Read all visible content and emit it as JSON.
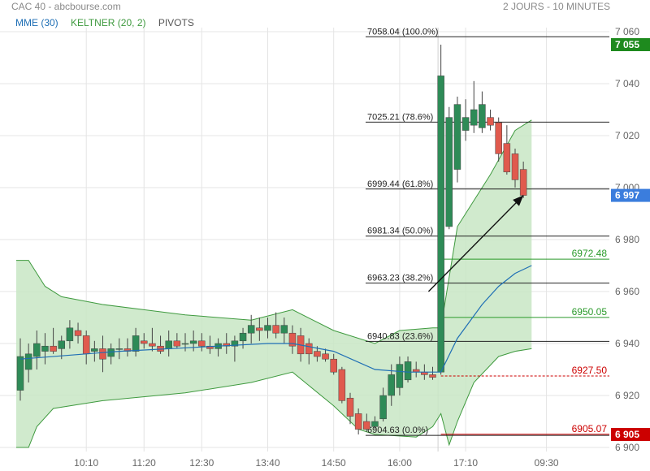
{
  "header": {
    "source": "CAC 40 - abcbourse.com",
    "period": "2 JOURS - 10 MINUTES"
  },
  "legend": [
    {
      "label": "MME (30)",
      "color": "#1f6fb5"
    },
    {
      "label": "KELTNER (20, 2)",
      "color": "#3f9a3f"
    },
    {
      "label": "PIVOTS",
      "color": "#555555"
    }
  ],
  "colors": {
    "up": "#2e8b57",
    "down": "#e05a4e",
    "ema": "#1f6fb5",
    "keltner_fill": "#c8e6c4",
    "keltner_line": "#3f9a3f",
    "pivot_green": "#2a9a2a",
    "pivot_red": "#cc0000",
    "last_price_bg": "#3b7ddd",
    "high_bg": "#1e8a1e",
    "low_bg": "#cc0000"
  },
  "chart_data": {
    "type": "candlestick",
    "x_tick_labels": [
      "10:10",
      "11:20",
      "12:30",
      "13:40",
      "14:50",
      "16:00",
      "17:10",
      "09:30"
    ],
    "y_ticks": [
      6900,
      6920,
      6940,
      6960,
      6980,
      7000,
      7020,
      7040,
      7060
    ],
    "y_tick_labels": [
      "6 900",
      "6 920",
      "6 940",
      "6 960",
      "6 980",
      "7 000",
      "7 020",
      "7 040",
      "7 060"
    ],
    "ylim": [
      6897,
      7063
    ],
    "grid": true,
    "candles": [
      {
        "o": 6922,
        "h": 6942,
        "l": 6918,
        "c": 6935
      },
      {
        "o": 6930,
        "h": 6940,
        "l": 6925,
        "c": 6936
      },
      {
        "o": 6935,
        "h": 6945,
        "l": 6930,
        "c": 6940
      },
      {
        "o": 6937,
        "h": 6944,
        "l": 6932,
        "c": 6939
      },
      {
        "o": 6939,
        "h": 6946,
        "l": 6936,
        "c": 6937
      },
      {
        "o": 6938,
        "h": 6943,
        "l": 6934,
        "c": 6941
      },
      {
        "o": 6941,
        "h": 6949,
        "l": 6938,
        "c": 6946
      },
      {
        "o": 6945,
        "h": 6948,
        "l": 6940,
        "c": 6943
      },
      {
        "o": 6943,
        "h": 6945,
        "l": 6932,
        "c": 6936
      },
      {
        "o": 6937,
        "h": 6941,
        "l": 6933,
        "c": 6938
      },
      {
        "o": 6938,
        "h": 6943,
        "l": 6929,
        "c": 6934
      },
      {
        "o": 6935,
        "h": 6940,
        "l": 6932,
        "c": 6938
      },
      {
        "o": 6938,
        "h": 6942,
        "l": 6934,
        "c": 6938
      },
      {
        "o": 6938,
        "h": 6942,
        "l": 6935,
        "c": 6937
      },
      {
        "o": 6937,
        "h": 6946,
        "l": 6935,
        "c": 6943
      },
      {
        "o": 6941,
        "h": 6944,
        "l": 6938,
        "c": 6940
      },
      {
        "o": 6940,
        "h": 6946,
        "l": 6937,
        "c": 6939
      },
      {
        "o": 6939,
        "h": 6943,
        "l": 6936,
        "c": 6937
      },
      {
        "o": 6938,
        "h": 6945,
        "l": 6935,
        "c": 6941
      },
      {
        "o": 6941,
        "h": 6944,
        "l": 6938,
        "c": 6939
      },
      {
        "o": 6940,
        "h": 6944,
        "l": 6937,
        "c": 6940
      },
      {
        "o": 6940,
        "h": 6945,
        "l": 6937,
        "c": 6941
      },
      {
        "o": 6941,
        "h": 6944,
        "l": 6937,
        "c": 6939
      },
      {
        "o": 6939,
        "h": 6943,
        "l": 6936,
        "c": 6938
      },
      {
        "o": 6938,
        "h": 6942,
        "l": 6935,
        "c": 6940
      },
      {
        "o": 6940,
        "h": 6944,
        "l": 6936,
        "c": 6939
      },
      {
        "o": 6939,
        "h": 6943,
        "l": 6933,
        "c": 6941
      },
      {
        "o": 6941,
        "h": 6946,
        "l": 6938,
        "c": 6944
      },
      {
        "o": 6944,
        "h": 6951,
        "l": 6940,
        "c": 6947
      },
      {
        "o": 6946,
        "h": 6950,
        "l": 6941,
        "c": 6945
      },
      {
        "o": 6945,
        "h": 6950,
        "l": 6942,
        "c": 6947
      },
      {
        "o": 6947,
        "h": 6952,
        "l": 6942,
        "c": 6944
      },
      {
        "o": 6944,
        "h": 6950,
        "l": 6940,
        "c": 6947
      },
      {
        "o": 6944,
        "h": 6947,
        "l": 6936,
        "c": 6939
      },
      {
        "o": 6943,
        "h": 6946,
        "l": 6933,
        "c": 6936
      },
      {
        "o": 6940,
        "h": 6942,
        "l": 6932,
        "c": 6936
      },
      {
        "o": 6937,
        "h": 6939,
        "l": 6933,
        "c": 6935
      },
      {
        "o": 6936,
        "h": 6938,
        "l": 6933,
        "c": 6934
      },
      {
        "o": 6934,
        "h": 6936,
        "l": 6928,
        "c": 6929
      },
      {
        "o": 6930,
        "h": 6931,
        "l": 6917,
        "c": 6918
      },
      {
        "o": 6919,
        "h": 6921,
        "l": 6909,
        "c": 6912
      },
      {
        "o": 6913,
        "h": 6915,
        "l": 6905,
        "c": 6907
      },
      {
        "o": 6910,
        "h": 6913,
        "l": 6906,
        "c": 6907
      },
      {
        "o": 6908,
        "h": 6912,
        "l": 6907,
        "c": 6910
      },
      {
        "o": 6911,
        "h": 6923,
        "l": 6910,
        "c": 6920
      },
      {
        "o": 6920,
        "h": 6932,
        "l": 6916,
        "c": 6928
      },
      {
        "o": 6923,
        "h": 6935,
        "l": 6920,
        "c": 6932
      },
      {
        "o": 6926,
        "h": 6935,
        "l": 6925,
        "c": 6933
      },
      {
        "o": 6930,
        "h": 6933,
        "l": 6927,
        "c": 6929
      },
      {
        "o": 6929,
        "h": 6932,
        "l": 6926,
        "c": 6928
      },
      {
        "o": 6928,
        "h": 6931,
        "l": 6926,
        "c": 6927
      },
      {
        "o": 6929,
        "h": 7055,
        "l": 6928,
        "c": 7043
      },
      {
        "o": 6985,
        "h": 7031,
        "l": 6984,
        "c": 7027
      },
      {
        "o": 7007,
        "h": 7035,
        "l": 7002,
        "c": 7032
      },
      {
        "o": 7022,
        "h": 7034,
        "l": 7018,
        "c": 7027
      },
      {
        "o": 7024,
        "h": 7041,
        "l": 7021,
        "c": 7030
      },
      {
        "o": 7023,
        "h": 7037,
        "l": 7021,
        "c": 7032
      },
      {
        "o": 7027,
        "h": 7030,
        "l": 7022,
        "c": 7024
      },
      {
        "o": 7025,
        "h": 7027,
        "l": 7010,
        "c": 7013
      },
      {
        "o": 7017,
        "h": 7024,
        "l": 7005,
        "c": 7006
      },
      {
        "o": 7013,
        "h": 7015,
        "l": 7000,
        "c": 7003
      },
      {
        "o": 7007,
        "h": 7010,
        "l": 6996,
        "c": 6997
      }
    ],
    "series": [
      {
        "name": "MME (30)",
        "type": "line",
        "values": [
          [
            0,
            6934
          ],
          [
            12,
            6937
          ],
          [
            24,
            6939
          ],
          [
            30,
            6940
          ],
          [
            33,
            6940
          ],
          [
            38,
            6937
          ],
          [
            43,
            6930
          ],
          [
            47,
            6929
          ],
          [
            50,
            6929
          ],
          [
            51,
            6929
          ],
          [
            53,
            6942
          ],
          [
            56,
            6955
          ],
          [
            58,
            6962
          ],
          [
            60,
            6967
          ],
          [
            62,
            6970
          ]
        ]
      },
      {
        "name": "KELTNER (20, 2)",
        "type": "band",
        "upper": [
          [
            -0.5,
            6972
          ],
          [
            1,
            6972
          ],
          [
            3,
            6962
          ],
          [
            5,
            6958
          ],
          [
            10,
            6955
          ],
          [
            20,
            6951
          ],
          [
            28,
            6949
          ],
          [
            33,
            6953
          ],
          [
            38,
            6945
          ],
          [
            43,
            6940
          ],
          [
            46,
            6945
          ],
          [
            50,
            6946
          ],
          [
            51,
            6946
          ],
          [
            53,
            6985
          ],
          [
            57,
            7005
          ],
          [
            60,
            7022
          ],
          [
            62,
            7026
          ]
        ],
        "lower": [
          [
            -0.5,
            6900
          ],
          [
            1,
            6900
          ],
          [
            2,
            6908
          ],
          [
            4,
            6915
          ],
          [
            10,
            6918
          ],
          [
            20,
            6921
          ],
          [
            28,
            6925
          ],
          [
            33,
            6929
          ],
          [
            38,
            6916
          ],
          [
            41,
            6907
          ],
          [
            43,
            6905
          ],
          [
            48,
            6904
          ],
          [
            50,
            6908
          ],
          [
            51,
            6913
          ],
          [
            52,
            6901
          ],
          [
            53,
            6910
          ],
          [
            55,
            6925
          ],
          [
            58,
            6935
          ],
          [
            60,
            6937
          ],
          [
            62,
            6938
          ]
        ]
      }
    ],
    "fib_levels": [
      {
        "label": "7058.04  (100.0%)",
        "value": 7058.04
      },
      {
        "label": "7025.21  (78.6%)",
        "value": 7025.21
      },
      {
        "label": "6999.44  (61.8%)",
        "value": 6999.44
      },
      {
        "label": "6981.34  (50.0%)",
        "value": 6981.34
      },
      {
        "label": "6963.23  (38.2%)",
        "value": 6963.23
      },
      {
        "label": "6940.83  (23.6%)",
        "value": 6940.83
      },
      {
        "label": "6904.63  (0.0%)",
        "value": 6904.63
      }
    ],
    "pivots": [
      {
        "label": "6972.48",
        "value": 6972.48,
        "color": "#2a9a2a"
      },
      {
        "label": "6950.05",
        "value": 6950.05,
        "color": "#2a9a2a"
      },
      {
        "label": "6927.50",
        "value": 6927.5,
        "color": "#cc0000"
      },
      {
        "label": "6905.07",
        "value": 6905.07,
        "color": "#cc0000"
      }
    ],
    "markers": [
      {
        "label": "7 055",
        "value": 7055,
        "color": "#1e8a1e"
      },
      {
        "label": "6 997",
        "value": 6997,
        "color": "#3b7ddd"
      },
      {
        "label": "6 905",
        "value": 6905,
        "color": "#cc0000"
      }
    ],
    "arrow": {
      "from": [
        49.5,
        6960
      ],
      "to": [
        61,
        6997
      ]
    }
  }
}
